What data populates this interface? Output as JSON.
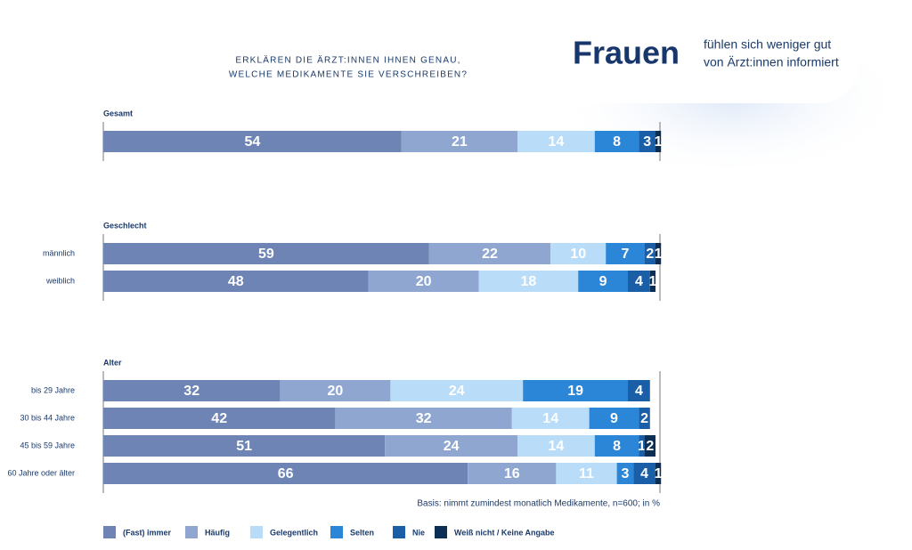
{
  "title_lines": [
    "ERKLÄREN DIE ÄRZT:INNEN IHNEN GENAU,",
    "WELCHE MEDIKAMENTE SIE VERSCHREIBEN?"
  ],
  "callout": {
    "headline": "Frauen",
    "lines": [
      "fühlen sich weniger gut",
      "von Ärzt:innen informiert"
    ]
  },
  "note": "Basis: nimmt zumindest monatlich Medikamente, n=600; in  %",
  "chart_data": {
    "type": "bar",
    "orientation": "horizontal",
    "stacked": true,
    "groups": [
      {
        "title": "Gesamt",
        "size": 1
      },
      {
        "title": "Geschlecht",
        "size": 2
      },
      {
        "title": "Alter",
        "size": 4
      }
    ],
    "categories": [
      null,
      "männlich",
      "weiblich",
      "bis 29 Jahre",
      "30 bis 44 Jahre",
      "45 bis 59 Jahre",
      "60 Jahre oder älter"
    ],
    "series": [
      {
        "name": "(Fast) immer",
        "color": "#6d84b4",
        "values": [
          54,
          59,
          48,
          32,
          42,
          51,
          66
        ]
      },
      {
        "name": "Häufig",
        "color": "#8fa7d0",
        "values": [
          21,
          22,
          20,
          20,
          32,
          24,
          16
        ]
      },
      {
        "name": "Gelegentlich",
        "color": "#b9dcf8",
        "values": [
          14,
          10,
          18,
          24,
          14,
          14,
          11
        ]
      },
      {
        "name": "Selten",
        "color": "#2b86d8",
        "values": [
          8,
          7,
          9,
          19,
          9,
          8,
          3
        ]
      },
      {
        "name": "Nie",
        "color": "#1b5ea8",
        "values": [
          3,
          2,
          4,
          4,
          2,
          1,
          4
        ]
      },
      {
        "name": "Weiß nicht / Keine Angabe",
        "color": "#0b2e55",
        "values": [
          1,
          1,
          1,
          null,
          null,
          2,
          1
        ]
      }
    ]
  }
}
